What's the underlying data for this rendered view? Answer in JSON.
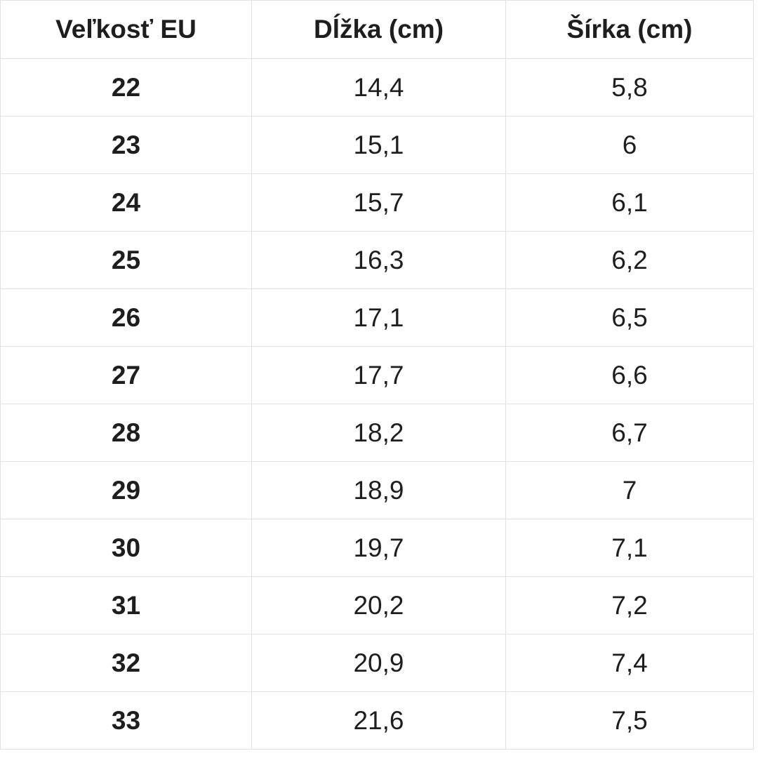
{
  "table": {
    "headers": [
      {
        "label": "Veľkosť EU"
      },
      {
        "label": "Dĺžka (cm)"
      },
      {
        "label": "Šírka (cm)"
      }
    ],
    "rows": [
      {
        "eu": "22",
        "length_cm": "14,4",
        "width_cm": "5,8"
      },
      {
        "eu": "23",
        "length_cm": "15,1",
        "width_cm": "6"
      },
      {
        "eu": "24",
        "length_cm": "15,7",
        "width_cm": "6,1"
      },
      {
        "eu": "25",
        "length_cm": "16,3",
        "width_cm": "6,2"
      },
      {
        "eu": "26",
        "length_cm": "17,1",
        "width_cm": "6,5"
      },
      {
        "eu": "27",
        "length_cm": "17,7",
        "width_cm": "6,6"
      },
      {
        "eu": "28",
        "length_cm": "18,2",
        "width_cm": "6,7"
      },
      {
        "eu": "29",
        "length_cm": "18,9",
        "width_cm": "7"
      },
      {
        "eu": "30",
        "length_cm": "19,7",
        "width_cm": "7,1"
      },
      {
        "eu": "31",
        "length_cm": "20,2",
        "width_cm": "7,2"
      },
      {
        "eu": "32",
        "length_cm": "20,9",
        "width_cm": "7,4"
      },
      {
        "eu": "33",
        "length_cm": "21,6",
        "width_cm": "7,5"
      }
    ]
  },
  "colors": {
    "background": "#ffffff",
    "border": "#e2e2e2",
    "text": "#1e1e1e"
  },
  "chart_data": {
    "type": "table",
    "title": "",
    "columns": [
      "Veľkosť EU",
      "Dĺžka (cm)",
      "Šírka (cm)"
    ],
    "rows": [
      [
        "22",
        "14,4",
        "5,8"
      ],
      [
        "23",
        "15,1",
        "6"
      ],
      [
        "24",
        "15,7",
        "6,1"
      ],
      [
        "25",
        "16,3",
        "6,2"
      ],
      [
        "26",
        "17,1",
        "6,5"
      ],
      [
        "27",
        "17,7",
        "6,6"
      ],
      [
        "28",
        "18,2",
        "6,7"
      ],
      [
        "29",
        "18,9",
        "7"
      ],
      [
        "30",
        "19,7",
        "7,1"
      ],
      [
        "31",
        "20,2",
        "7,2"
      ],
      [
        "32",
        "20,9",
        "7,4"
      ],
      [
        "33",
        "21,6",
        "7,5"
      ]
    ],
    "layout": {
      "grid": true,
      "header_bold": true,
      "first_column_bold": true,
      "decimal_separator": ","
    }
  }
}
